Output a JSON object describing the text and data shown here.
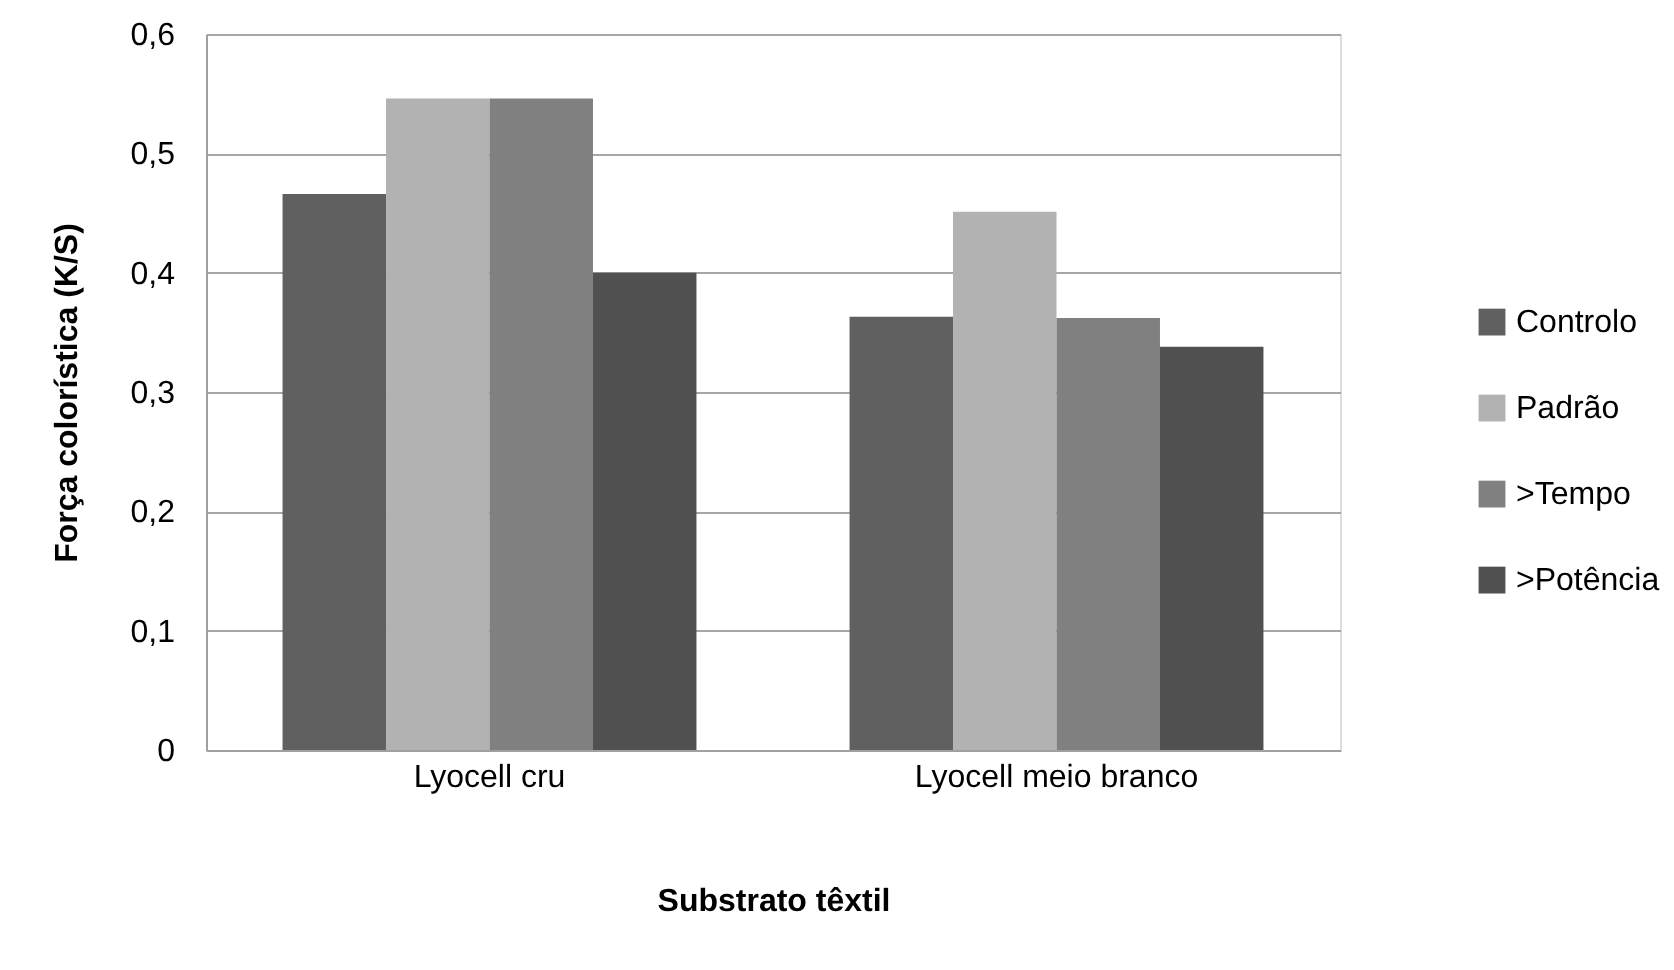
{
  "chart_data": {
    "type": "bar",
    "xlabel": "Substrato têxtil",
    "ylabel": "Força colorística (K/S)",
    "categories": [
      "Lyocell cru",
      "Lyocell meio branco"
    ],
    "series": [
      {
        "name": "Controlo",
        "color": "#606060",
        "values": [
          0.466,
          0.363
        ]
      },
      {
        "name": "Padrão",
        "color": "#b2b2b2",
        "values": [
          0.546,
          0.451
        ]
      },
      {
        "name": ">Tempo",
        "color": "#808080",
        "values": [
          0.546,
          0.362
        ]
      },
      {
        "name": ">Potência",
        "color": "#505050",
        "values": [
          0.4,
          0.338
        ]
      }
    ],
    "ylim": [
      0,
      0.6
    ],
    "yticks": [
      0,
      {
        "value": 0.1,
        "label": "0,1"
      },
      {
        "value": 0.2,
        "label": "0,2"
      },
      {
        "value": 0.3,
        "label": "0,3"
      },
      {
        "value": 0.4,
        "label": "0,4"
      },
      {
        "value": 0.5,
        "label": "0,5"
      },
      {
        "value": 0.6,
        "label": "0,6"
      }
    ],
    "grid": "y",
    "legend": "right"
  }
}
